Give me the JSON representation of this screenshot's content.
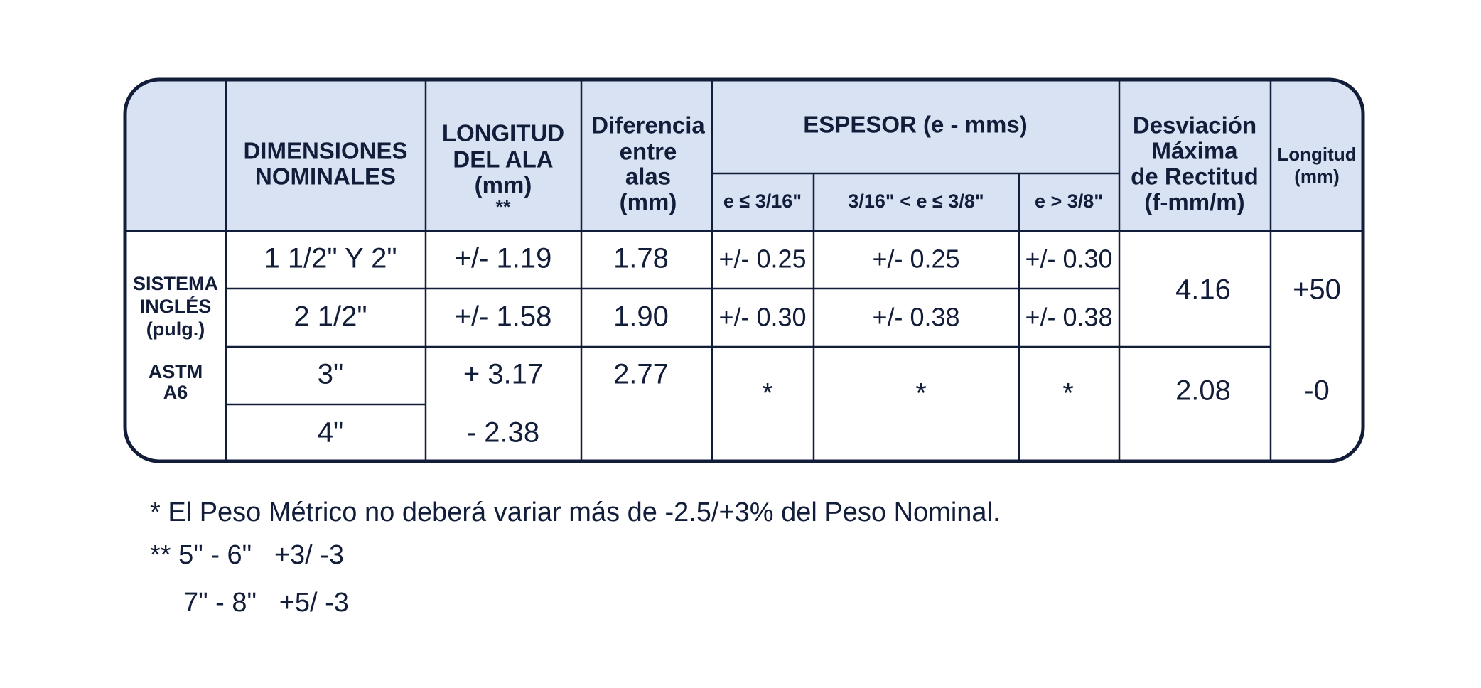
{
  "table": {
    "header": {
      "dimensiones": [
        "DIMENSIONES",
        "NOMINALES"
      ],
      "longitud_ala": [
        "LONGITUD",
        "DEL ALA",
        "(mm)",
        "**"
      ],
      "diferencia": [
        "Diferencia",
        "entre",
        "alas",
        "(mm)"
      ],
      "espesor": "ESPESOR (e - mms)",
      "espesor_sub": [
        "e ≤ 3/16\"",
        "3/16\" < e ≤ 3/8\"",
        "e > 3/8\""
      ],
      "desviacion": [
        "Desviación",
        "Máxima",
        "de Rectitud",
        "(f-mm/m)"
      ],
      "longitud": [
        "Longitud",
        "(mm)"
      ]
    },
    "group_label": [
      [
        "SISTEMA",
        "INGLÉS",
        "(pulg.)"
      ],
      [
        "ASTM",
        "A6"
      ]
    ],
    "dimensiones": [
      "1 1/2\" Y 2\"",
      "2 1/2\"",
      "3\"",
      "4\""
    ],
    "longitud_ala": [
      "+/- 1.19",
      "+/- 1.58",
      "+ 3.17",
      "- 2.38"
    ],
    "diferencia": [
      "1.78",
      "1.90",
      "2.77"
    ],
    "espesor": [
      [
        "+/- 0.25",
        "+/- 0.25",
        "+/- 0.30"
      ],
      [
        "+/- 0.30",
        "+/- 0.38",
        "+/- 0.38"
      ],
      [
        "*",
        "*",
        "*"
      ]
    ],
    "desviacion": [
      "4.16",
      "2.08"
    ],
    "longitud": [
      "+50",
      "-0"
    ]
  },
  "footnotes": [
    "* El Peso Métrico no deberá variar más de -2.5/+3% del Peso Nominal.",
    "** 5\" - 6\"   +3/ -3",
    "7\" - 8\"   +5/ -3"
  ]
}
